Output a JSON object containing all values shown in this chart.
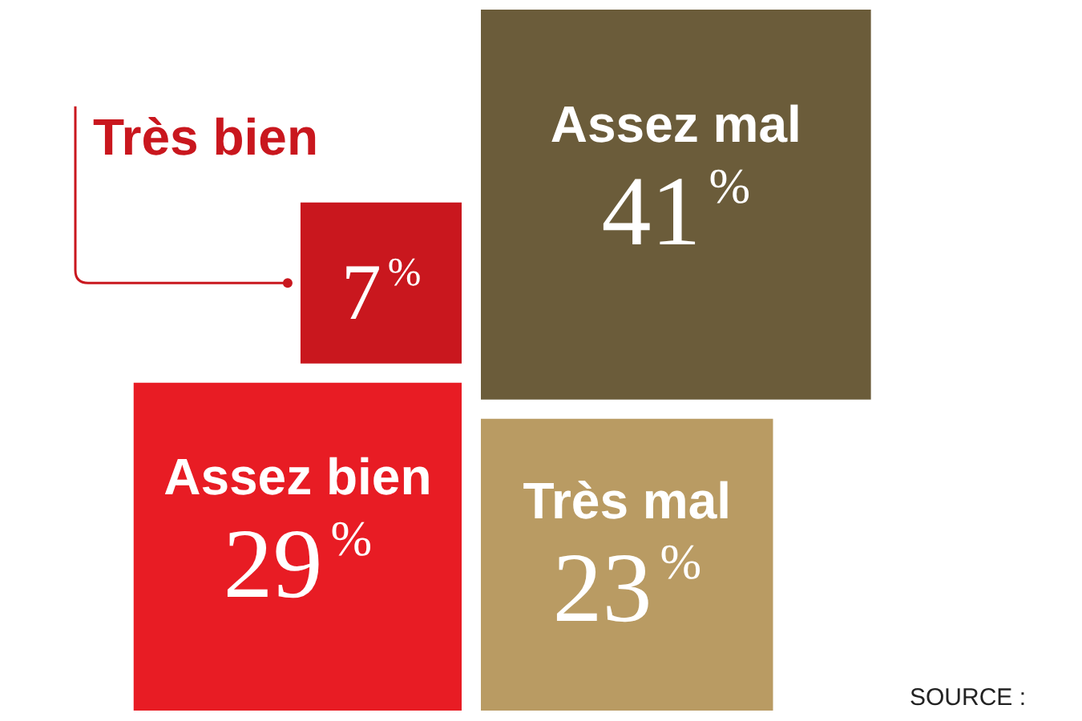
{
  "chart_data": {
    "type": "other",
    "categories": [
      "Très bien",
      "Assez bien",
      "Assez mal",
      "Très mal"
    ],
    "values": [
      7,
      29,
      41,
      23
    ],
    "value_labels": [
      "7%",
      "29%",
      "41%",
      "23%"
    ],
    "colors": [
      "#c9171e",
      "#e81c24",
      "#6b5c3a",
      "#b99b63"
    ],
    "annotations": [
      "SOURCE :"
    ]
  }
}
